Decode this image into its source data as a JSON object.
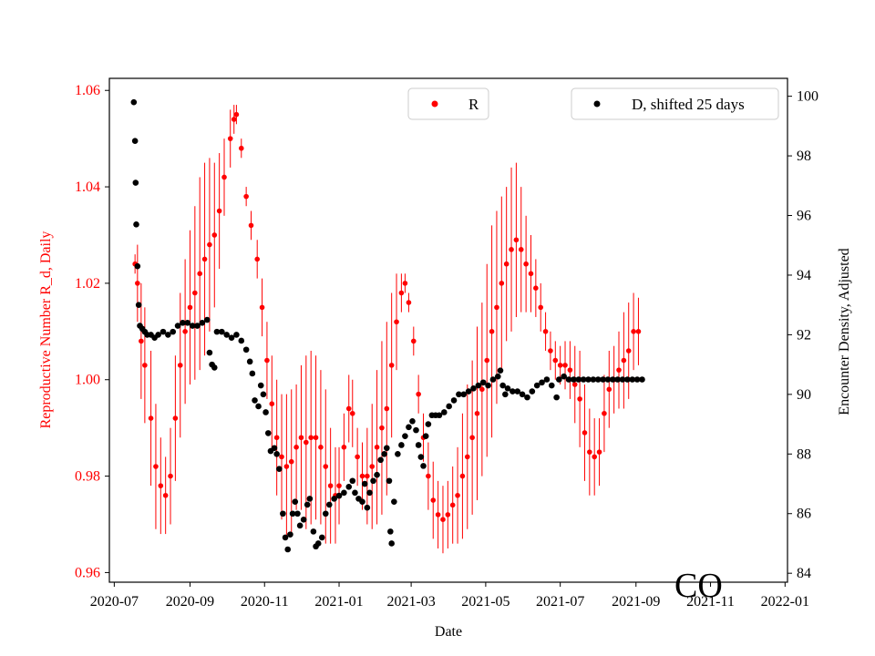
{
  "chart_data": {
    "type": "scatter",
    "watermark": "CO",
    "xlabel": "Date",
    "ylabel_left": "Reproductive Number R_d, Daily",
    "ylabel_right": "Encounter Density, Adjusted",
    "x_ticks": [
      "2020-07",
      "2020-09",
      "2020-11",
      "2021-01",
      "2021-03",
      "2021-05",
      "2021-07",
      "2021-09",
      "2021-11",
      "2022-01"
    ],
    "y_left_ticks": [
      "0.96",
      "0.98",
      "1.00",
      "1.02",
      "1.04",
      "1.06"
    ],
    "y_right_ticks": [
      "84",
      "86",
      "88",
      "90",
      "92",
      "94",
      "96",
      "98",
      "100"
    ],
    "x_range_days": [
      -4,
      551
    ],
    "y_left_range": [
      0.958,
      1.0625
    ],
    "y_right_range": [
      83.7,
      100.6
    ],
    "colors": {
      "r_series": "#ff0000",
      "d_series": "#000000",
      "axis": "#000000"
    },
    "legend_r": {
      "label": "R",
      "placement": "top-center"
    },
    "legend_d": {
      "label": "D, shifted 25 days",
      "placement": "top-right"
    },
    "series": [
      {
        "name": "R",
        "axis": "left",
        "points_note": "day offset from 2020-07-01, value, error half-width",
        "points": [
          [
            17,
            1.024,
            0.002
          ],
          [
            19,
            1.02,
            0.008
          ],
          [
            22,
            1.008,
            0.012
          ],
          [
            25,
            1.003,
            0.012
          ],
          [
            30,
            0.992,
            0.014
          ],
          [
            34,
            0.982,
            0.013
          ],
          [
            38,
            0.978,
            0.01
          ],
          [
            42,
            0.976,
            0.008
          ],
          [
            46,
            0.98,
            0.01
          ],
          [
            50,
            0.992,
            0.013
          ],
          [
            54,
            1.003,
            0.015
          ],
          [
            58,
            1.01,
            0.015
          ],
          [
            62,
            1.015,
            0.016
          ],
          [
            66,
            1.018,
            0.018
          ],
          [
            70,
            1.022,
            0.02
          ],
          [
            74,
            1.025,
            0.02
          ],
          [
            78,
            1.028,
            0.018
          ],
          [
            82,
            1.03,
            0.015
          ],
          [
            86,
            1.035,
            0.012
          ],
          [
            90,
            1.042,
            0.008
          ],
          [
            95,
            1.05,
            0.006
          ],
          [
            98,
            1.054,
            0.003
          ],
          [
            100,
            1.055,
            0.002
          ],
          [
            104,
            1.048,
            0.002
          ],
          [
            108,
            1.038,
            0.002
          ],
          [
            112,
            1.032,
            0.003
          ],
          [
            117,
            1.025,
            0.004
          ],
          [
            121,
            1.015,
            0.006
          ],
          [
            125,
            1.004,
            0.008
          ],
          [
            129,
            0.995,
            0.01
          ],
          [
            133,
            0.988,
            0.012
          ],
          [
            137,
            0.984,
            0.013
          ],
          [
            141,
            0.982,
            0.015
          ],
          [
            145,
            0.983,
            0.015
          ],
          [
            149,
            0.986,
            0.013
          ],
          [
            153,
            0.988,
            0.015
          ],
          [
            157,
            0.987,
            0.018
          ],
          [
            161,
            0.988,
            0.018
          ],
          [
            165,
            0.988,
            0.017
          ],
          [
            169,
            0.986,
            0.016
          ],
          [
            173,
            0.982,
            0.016
          ],
          [
            177,
            0.978,
            0.012
          ],
          [
            181,
            0.976,
            0.01
          ],
          [
            184,
            0.978,
            0.008
          ],
          [
            188,
            0.986,
            0.007
          ],
          [
            192,
            0.994,
            0.007
          ],
          [
            195,
            0.993,
            0.007
          ],
          [
            199,
            0.984,
            0.006
          ],
          [
            203,
            0.98,
            0.007
          ],
          [
            207,
            0.98,
            0.01
          ],
          [
            211,
            0.982,
            0.013
          ],
          [
            215,
            0.986,
            0.016
          ],
          [
            219,
            0.99,
            0.018
          ],
          [
            223,
            0.994,
            0.018
          ],
          [
            227,
            1.003,
            0.015
          ],
          [
            231,
            1.012,
            0.01
          ],
          [
            235,
            1.018,
            0.004
          ],
          [
            238,
            1.02,
            0.002
          ],
          [
            241,
            1.016,
            0.002
          ],
          [
            245,
            1.008,
            0.003
          ],
          [
            249,
            0.997,
            0.004
          ],
          [
            253,
            0.988,
            0.005
          ],
          [
            257,
            0.98,
            0.007
          ],
          [
            261,
            0.975,
            0.008
          ],
          [
            265,
            0.972,
            0.007
          ],
          [
            269,
            0.971,
            0.007
          ],
          [
            273,
            0.972,
            0.007
          ],
          [
            277,
            0.974,
            0.008
          ],
          [
            281,
            0.976,
            0.01
          ],
          [
            285,
            0.98,
            0.013
          ],
          [
            289,
            0.984,
            0.015
          ],
          [
            293,
            0.988,
            0.016
          ],
          [
            297,
            0.993,
            0.018
          ],
          [
            301,
            0.998,
            0.018
          ],
          [
            305,
            1.004,
            0.02
          ],
          [
            309,
            1.01,
            0.022
          ],
          [
            313,
            1.015,
            0.02
          ],
          [
            317,
            1.02,
            0.018
          ],
          [
            321,
            1.024,
            0.016
          ],
          [
            325,
            1.027,
            0.017
          ],
          [
            329,
            1.029,
            0.016
          ],
          [
            333,
            1.027,
            0.013
          ],
          [
            337,
            1.024,
            0.01
          ],
          [
            341,
            1.022,
            0.008
          ],
          [
            345,
            1.019,
            0.006
          ],
          [
            349,
            1.015,
            0.005
          ],
          [
            353,
            1.01,
            0.004
          ],
          [
            357,
            1.006,
            0.004
          ],
          [
            361,
            1.004,
            0.004
          ],
          [
            365,
            1.003,
            0.004
          ],
          [
            369,
            1.003,
            0.005
          ],
          [
            373,
            1.002,
            0.006
          ],
          [
            377,
            0.999,
            0.008
          ],
          [
            381,
            0.996,
            0.01
          ],
          [
            385,
            0.989,
            0.01
          ],
          [
            389,
            0.985,
            0.009
          ],
          [
            393,
            0.984,
            0.008
          ],
          [
            397,
            0.985,
            0.007
          ],
          [
            401,
            0.993,
            0.008
          ],
          [
            405,
            0.998,
            0.008
          ],
          [
            409,
            1.0,
            0.007
          ],
          [
            413,
            1.002,
            0.008
          ],
          [
            417,
            1.004,
            0.01
          ],
          [
            421,
            1.006,
            0.01
          ],
          [
            425,
            1.01,
            0.008
          ],
          [
            429,
            1.01,
            0.007
          ]
        ]
      },
      {
        "name": "D, shifted 25 days",
        "axis": "right",
        "points_note": "day offset from 2020-07-01, value",
        "points": [
          [
            16,
            99.8
          ],
          [
            17,
            98.5
          ],
          [
            17.5,
            97.1
          ],
          [
            18,
            95.7
          ],
          [
            19,
            94.3
          ],
          [
            20,
            93.0
          ],
          [
            21,
            92.3
          ],
          [
            23,
            92.2
          ],
          [
            25,
            92.1
          ],
          [
            27,
            92.0
          ],
          [
            30,
            92.0
          ],
          [
            33,
            91.9
          ],
          [
            36,
            92.0
          ],
          [
            40,
            92.1
          ],
          [
            44,
            92.0
          ],
          [
            48,
            92.1
          ],
          [
            52,
            92.3
          ],
          [
            56,
            92.4
          ],
          [
            60,
            92.4
          ],
          [
            64,
            92.3
          ],
          [
            68,
            92.3
          ],
          [
            72,
            92.4
          ],
          [
            76,
            92.5
          ],
          [
            78,
            91.4
          ],
          [
            80,
            91.0
          ],
          [
            82,
            90.9
          ],
          [
            84,
            92.1
          ],
          [
            88,
            92.1
          ],
          [
            92,
            92.0
          ],
          [
            96,
            91.9
          ],
          [
            100,
            92.0
          ],
          [
            104,
            91.8
          ],
          [
            108,
            91.5
          ],
          [
            111,
            91.1
          ],
          [
            113,
            90.7
          ],
          [
            115,
            89.8
          ],
          [
            118,
            89.6
          ],
          [
            120,
            90.3
          ],
          [
            122,
            90.0
          ],
          [
            124,
            89.4
          ],
          [
            126,
            88.7
          ],
          [
            128,
            88.1
          ],
          [
            131,
            88.2
          ],
          [
            133,
            88.0
          ],
          [
            135,
            87.5
          ],
          [
            138,
            86.0
          ],
          [
            140,
            85.2
          ],
          [
            142,
            84.8
          ],
          [
            144,
            85.3
          ],
          [
            146,
            86.0
          ],
          [
            148,
            86.4
          ],
          [
            150,
            86.0
          ],
          [
            152,
            85.6
          ],
          [
            155,
            85.8
          ],
          [
            158,
            86.3
          ],
          [
            160,
            86.5
          ],
          [
            163,
            85.4
          ],
          [
            165,
            84.9
          ],
          [
            167,
            85.0
          ],
          [
            170,
            85.2
          ],
          [
            173,
            86.0
          ],
          [
            176,
            86.3
          ],
          [
            180,
            86.5
          ],
          [
            184,
            86.6
          ],
          [
            188,
            86.7
          ],
          [
            192,
            86.9
          ],
          [
            195,
            87.1
          ],
          [
            197,
            86.7
          ],
          [
            200,
            86.5
          ],
          [
            203,
            86.4
          ],
          [
            205,
            87.0
          ],
          [
            207,
            86.2
          ],
          [
            209,
            86.7
          ],
          [
            212,
            87.1
          ],
          [
            215,
            87.3
          ],
          [
            218,
            87.8
          ],
          [
            221,
            88.0
          ],
          [
            223,
            88.2
          ],
          [
            225,
            87.1
          ],
          [
            226,
            85.4
          ],
          [
            227,
            85.0
          ],
          [
            229,
            86.4
          ],
          [
            232,
            88.0
          ],
          [
            235,
            88.3
          ],
          [
            238,
            88.6
          ],
          [
            241,
            88.9
          ],
          [
            244,
            89.1
          ],
          [
            247,
            88.8
          ],
          [
            249,
            88.3
          ],
          [
            251,
            87.9
          ],
          [
            253,
            87.6
          ],
          [
            255,
            88.6
          ],
          [
            257,
            89.0
          ],
          [
            260,
            89.3
          ],
          [
            263,
            89.3
          ],
          [
            266,
            89.3
          ],
          [
            270,
            89.4
          ],
          [
            274,
            89.6
          ],
          [
            278,
            89.8
          ],
          [
            282,
            90.0
          ],
          [
            286,
            90.0
          ],
          [
            290,
            90.1
          ],
          [
            294,
            90.2
          ],
          [
            298,
            90.3
          ],
          [
            302,
            90.4
          ],
          [
            306,
            90.3
          ],
          [
            310,
            90.5
          ],
          [
            314,
            90.6
          ],
          [
            316,
            90.8
          ],
          [
            318,
            90.3
          ],
          [
            320,
            90.0
          ],
          [
            322,
            90.2
          ],
          [
            326,
            90.1
          ],
          [
            330,
            90.1
          ],
          [
            334,
            90.0
          ],
          [
            338,
            89.9
          ],
          [
            342,
            90.1
          ],
          [
            346,
            90.3
          ],
          [
            350,
            90.4
          ],
          [
            354,
            90.5
          ],
          [
            358,
            90.3
          ],
          [
            362,
            89.9
          ],
          [
            364,
            90.5
          ],
          [
            368,
            90.6
          ],
          [
            372,
            90.5
          ],
          [
            376,
            90.5
          ],
          [
            380,
            90.5
          ],
          [
            384,
            90.5
          ],
          [
            388,
            90.5
          ],
          [
            392,
            90.5
          ],
          [
            396,
            90.5
          ],
          [
            400,
            90.5
          ],
          [
            404,
            90.5
          ],
          [
            408,
            90.5
          ],
          [
            412,
            90.5
          ],
          [
            416,
            90.5
          ],
          [
            420,
            90.5
          ],
          [
            424,
            90.5
          ],
          [
            428,
            90.5
          ],
          [
            432,
            90.5
          ]
        ]
      }
    ]
  }
}
